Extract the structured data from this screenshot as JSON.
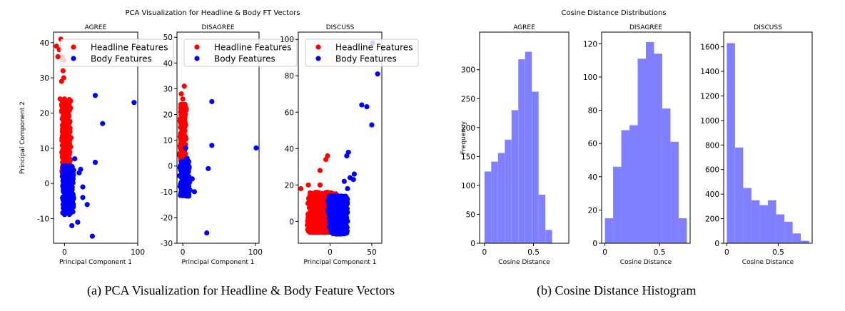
{
  "figure": {
    "left_title": "PCA Visualization for Headline & Body FT Vectors",
    "right_title": "Cosine Distance Distributions",
    "caption_a": "(a) PCA Visualization for Headline & Body Feature Vectors",
    "caption_b": "(b) Cosine Distance Histogram",
    "headline_color": "#ff0000",
    "body_color": "#0000ff",
    "hist_color": "#8080ff"
  },
  "chart_data": [
    {
      "type": "scatter",
      "title": "AGREE",
      "xlabel": "Principal Component 1",
      "ylabel": "Principal Component 2",
      "xlim": [
        -15,
        100
      ],
      "ylim": [
        -17,
        43
      ],
      "xticks": [
        0,
        100
      ],
      "yticks": [
        -10,
        0,
        10,
        20,
        30,
        40
      ],
      "legend": "top-right",
      "series": [
        {
          "name": "Headline Features",
          "color": "#ff0000",
          "cloud": {
            "xmin": -5,
            "xmax": 9,
            "ymin": 3,
            "ymax": 24,
            "n": 420
          },
          "points": [
            [
              -11,
              39
            ],
            [
              -7,
              38
            ],
            [
              -5,
              41
            ],
            [
              -3,
              36
            ],
            [
              -9,
              36
            ],
            [
              -1,
              30
            ],
            [
              -4,
              29
            ],
            [
              -2,
              32
            ],
            [
              -6,
              24
            ],
            [
              2,
              23
            ],
            [
              -3,
              22
            ],
            [
              4,
              18
            ],
            [
              6,
              15
            ],
            [
              9,
              13
            ],
            [
              -1,
              35
            ]
          ]
        },
        {
          "name": "Body Features",
          "color": "#0000ff",
          "cloud": {
            "xmin": -4,
            "xmax": 13,
            "ymin": -9,
            "ymax": 5,
            "n": 500
          },
          "points": [
            [
              95,
              23
            ],
            [
              52,
              17
            ],
            [
              42,
              25
            ],
            [
              42,
              6
            ],
            [
              22,
              4
            ],
            [
              20,
              3
            ],
            [
              14,
              7
            ],
            [
              25,
              -4
            ],
            [
              31,
              -6
            ],
            [
              18,
              -11
            ],
            [
              38,
              -15
            ],
            [
              10,
              -12
            ],
            [
              25,
              -1
            ]
          ]
        }
      ]
    },
    {
      "type": "scatter",
      "title": "DISAGREE",
      "xlabel": "Principal Component 1",
      "ylabel": "",
      "xlim": [
        -8,
        105
      ],
      "ylim": [
        -30,
        52
      ],
      "xticks": [
        0,
        100
      ],
      "yticks": [
        -30,
        -20,
        -10,
        0,
        10,
        20,
        30,
        40,
        50
      ],
      "legend": "top-right",
      "series": [
        {
          "name": "Headline Features",
          "color": "#ff0000",
          "cloud": {
            "xmin": -5,
            "xmax": 5,
            "ymin": 2,
            "ymax": 24,
            "n": 260
          },
          "points": [
            [
              2,
              31
            ],
            [
              -2,
              28
            ],
            [
              0,
              26
            ],
            [
              -3,
              21
            ],
            [
              4,
              16
            ],
            [
              1,
              12
            ]
          ]
        },
        {
          "name": "Body Features",
          "color": "#0000ff",
          "cloud": {
            "xmin": -5,
            "xmax": 10,
            "ymin": -12,
            "ymax": 2,
            "n": 300
          },
          "points": [
            [
              101,
              7
            ],
            [
              40,
              25
            ],
            [
              40,
              8
            ],
            [
              35,
              -1
            ],
            [
              13,
              -5
            ],
            [
              16,
              -10
            ],
            [
              33,
              -26
            ],
            [
              6,
              3
            ],
            [
              4,
              7
            ]
          ]
        }
      ]
    },
    {
      "type": "scatter",
      "title": "DISCUSS",
      "xlabel": "Principal Component 1",
      "ylabel": "",
      "xlim": [
        -38,
        62
      ],
      "ylim": [
        -12,
        104
      ],
      "xticks": [
        0,
        50
      ],
      "yticks": [
        0,
        20,
        40,
        60,
        80,
        100
      ],
      "legend": "top-right",
      "series": [
        {
          "name": "Headline Features",
          "color": "#ff0000",
          "cloud": {
            "xmin": -28,
            "xmax": 8,
            "ymin": -6,
            "ymax": 16,
            "n": 1100
          },
          "points": [
            [
              -35,
              18
            ],
            [
              -26,
              20
            ],
            [
              -12,
              20
            ],
            [
              -5,
              34
            ],
            [
              -12,
              28
            ],
            [
              -3,
              36
            ],
            [
              -16,
              13
            ]
          ]
        },
        {
          "name": "Body Features",
          "color": "#0000ff",
          "cloud": {
            "xmin": -3,
            "xmax": 22,
            "ymin": -7,
            "ymax": 14,
            "n": 1000
          },
          "points": [
            [
              57,
              81
            ],
            [
              51,
              98
            ],
            [
              50,
              53
            ],
            [
              44,
              63
            ],
            [
              38,
              64
            ],
            [
              22,
              38
            ],
            [
              20,
              36
            ],
            [
              29,
              26
            ],
            [
              24,
              24
            ],
            [
              17,
              22
            ],
            [
              21,
              18
            ],
            [
              28,
              23
            ]
          ]
        }
      ]
    },
    {
      "type": "bar",
      "title": "AGREE",
      "xlabel": "Cosine Distance",
      "ylabel": "Frequency",
      "xlim": [
        -0.05,
        0.86
      ],
      "ylim": [
        0,
        365
      ],
      "xticks": [
        0.0,
        0.5
      ],
      "yticks": [
        0,
        50,
        100,
        150,
        200,
        250,
        300
      ],
      "bin_edges": [
        0.0,
        0.069,
        0.138,
        0.207,
        0.276,
        0.345,
        0.414,
        0.483,
        0.552,
        0.621,
        0.69,
        0.759,
        0.828
      ],
      "values": [
        124,
        141,
        156,
        179,
        230,
        318,
        331,
        262,
        84,
        23,
        0,
        0
      ]
    },
    {
      "type": "bar",
      "title": "DISAGREE",
      "xlabel": "Cosine Distance",
      "ylabel": "",
      "xlim": [
        -0.03,
        0.78
      ],
      "ylim": [
        0,
        127
      ],
      "xticks": [
        0.0,
        0.5
      ],
      "yticks": [
        0,
        20,
        40,
        60,
        80,
        100,
        120
      ],
      "bin_edges": [
        0.0,
        0.075,
        0.15,
        0.225,
        0.3,
        0.375,
        0.45,
        0.525,
        0.6,
        0.675,
        0.75
      ],
      "values": [
        15,
        46,
        68,
        71,
        111,
        121,
        114,
        81,
        61,
        15
      ]
    },
    {
      "type": "bar",
      "title": "DISCUSS",
      "xlabel": "Cosine Distance",
      "ylabel": "",
      "xlim": [
        -0.03,
        0.83
      ],
      "ylim": [
        0,
        1720
      ],
      "xticks": [
        0.0,
        0.5
      ],
      "yticks": [
        0,
        200,
        400,
        600,
        800,
        1000,
        1200,
        1400,
        1600
      ],
      "bin_edges": [
        0.0,
        0.08,
        0.16,
        0.24,
        0.32,
        0.4,
        0.48,
        0.56,
        0.64,
        0.72,
        0.8
      ],
      "values": [
        1630,
        780,
        450,
        350,
        310,
        350,
        235,
        175,
        80,
        20
      ]
    }
  ]
}
